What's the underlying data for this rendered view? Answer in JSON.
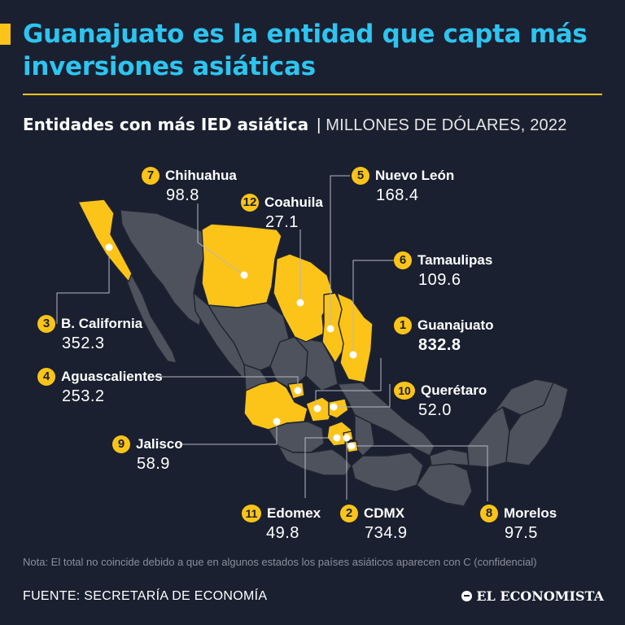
{
  "header": {
    "title": "Guanajuato es la entidad que capta más inversiones asiáticas",
    "subtitle_bold": "Entidades con más IED asiática",
    "subtitle_separator": "|",
    "subtitle_unit": "MILLONES DE DÓLARES, 2022"
  },
  "colors": {
    "highlight": "#fcc419",
    "title": "#2ec4f0",
    "background": "#1a2030",
    "land": "#4e525d"
  },
  "states": [
    {
      "rank": "1",
      "name": "Guanajuato",
      "value": "832.8",
      "emphasis": true
    },
    {
      "rank": "2",
      "name": "CDMX",
      "value": "734.9"
    },
    {
      "rank": "3",
      "name": "B. California",
      "value": "352.3"
    },
    {
      "rank": "4",
      "name": "Aguascalientes",
      "value": "253.2"
    },
    {
      "rank": "5",
      "name": "Nuevo León",
      "value": "168.4"
    },
    {
      "rank": "6",
      "name": "Tamaulipas",
      "value": "109.6"
    },
    {
      "rank": "7",
      "name": "Chihuahua",
      "value": "98.8"
    },
    {
      "rank": "8",
      "name": "Morelos",
      "value": "97.5"
    },
    {
      "rank": "9",
      "name": "Jalisco",
      "value": "58.9"
    },
    {
      "rank": "10",
      "name": "Querétaro",
      "value": "52.0"
    },
    {
      "rank": "11",
      "name": "Edomex",
      "value": "49.8"
    },
    {
      "rank": "12",
      "name": "Coahuila",
      "value": "27.1"
    }
  ],
  "footer": {
    "note": "Nota: El total no coincide debido a que en algunos estados los países asiáticos aparecen con C (confidencial)",
    "source": "FUENTE: SECRETARÍA DE ECONOMÍA",
    "brand": "EL ECONOMISTA"
  }
}
